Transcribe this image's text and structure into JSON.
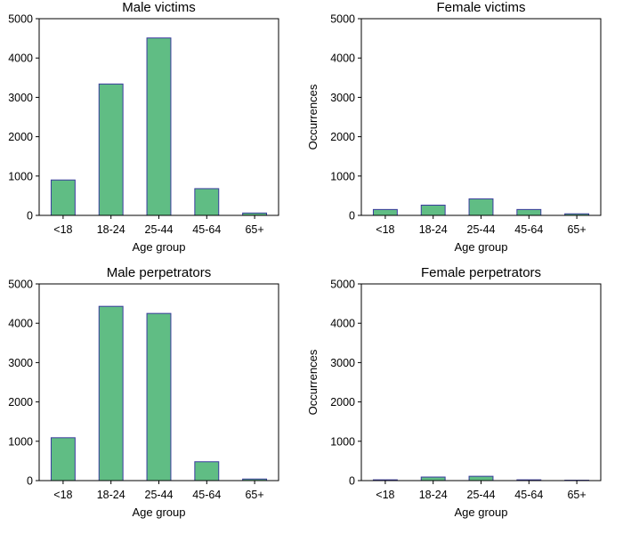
{
  "style": {
    "bar_fill": "#60bd84",
    "bar_edge": "#3b3b9e",
    "axis_color": "#000000",
    "background": "#ffffff"
  },
  "chart_data": [
    {
      "type": "bar",
      "title": "Male victims",
      "xlabel": "Age group",
      "ylabel": "",
      "categories": [
        "<18",
        "18-24",
        "25-44",
        "45-64",
        "65+"
      ],
      "values": [
        900,
        3340,
        4510,
        680,
        60
      ],
      "ylim": [
        0,
        5000
      ],
      "yticks": [
        0,
        1000,
        2000,
        3000,
        4000,
        5000
      ],
      "grid": false
    },
    {
      "type": "bar",
      "title": "Female victims",
      "xlabel": "Age group",
      "ylabel": "Occurrences",
      "categories": [
        "<18",
        "18-24",
        "25-44",
        "45-64",
        "65+"
      ],
      "values": [
        150,
        260,
        420,
        150,
        40
      ],
      "ylim": [
        0,
        5000
      ],
      "yticks": [
        0,
        1000,
        2000,
        3000,
        4000,
        5000
      ],
      "grid": false
    },
    {
      "type": "bar",
      "title": "Male perpetrators",
      "xlabel": "Age group",
      "ylabel": "",
      "categories": [
        "<18",
        "18-24",
        "25-44",
        "45-64",
        "65+"
      ],
      "values": [
        1090,
        4430,
        4250,
        480,
        40
      ],
      "ylim": [
        0,
        5000
      ],
      "yticks": [
        0,
        1000,
        2000,
        3000,
        4000,
        5000
      ],
      "grid": false
    },
    {
      "type": "bar",
      "title": "Female perpetrators",
      "xlabel": "Age group",
      "ylabel": "Occurrences",
      "categories": [
        "<18",
        "18-24",
        "25-44",
        "45-64",
        "65+"
      ],
      "values": [
        20,
        90,
        110,
        20,
        10
      ],
      "ylim": [
        0,
        5000
      ],
      "yticks": [
        0,
        1000,
        2000,
        3000,
        4000,
        5000
      ],
      "grid": false
    }
  ]
}
